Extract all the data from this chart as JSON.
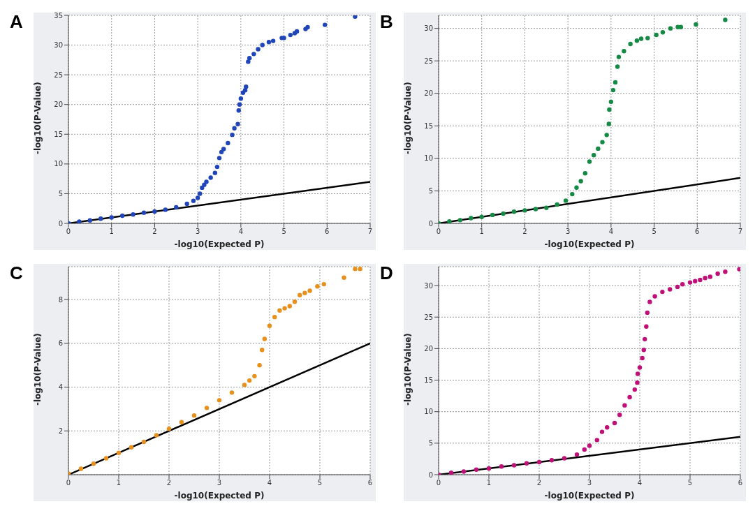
{
  "chart_data": [
    {
      "type": "scatter",
      "title": "A",
      "xlabel": "-log10(Expected P)",
      "ylabel": "-log10(P-Value)",
      "xlim": [
        0,
        7
      ],
      "ylim": [
        0,
        35
      ],
      "xticks": [
        0,
        1,
        2,
        3,
        4,
        5,
        6,
        7
      ],
      "yticks": [
        0,
        5,
        10,
        15,
        20,
        25,
        30,
        35
      ],
      "grid": true,
      "marker": "circle",
      "series": [
        {
          "type": "scatter",
          "color": "#1f45b8",
          "x": [
            0,
            0.25,
            0.5,
            0.75,
            1,
            1.25,
            1.5,
            1.75,
            2,
            2.25,
            2.5,
            2.75,
            2.9,
            3.0,
            3.05,
            3.1,
            3.15,
            3.2,
            3.3,
            3.4,
            3.45,
            3.5,
            3.55,
            3.6,
            3.7,
            3.8,
            3.85,
            3.93,
            3.95,
            3.97,
            4.0,
            4.05,
            4.1,
            4.12,
            4.17,
            4.2,
            4.3,
            4.4,
            4.5,
            4.65,
            4.75,
            4.95,
            5.0,
            5.15,
            5.25,
            5.3,
            5.5,
            5.55,
            5.95,
            6.65
          ],
          "values": [
            0,
            0.3,
            0.5,
            0.8,
            1.0,
            1.3,
            1.5,
            1.8,
            2.0,
            2.3,
            2.7,
            3.3,
            3.8,
            4.3,
            5.0,
            6.0,
            6.5,
            7.0,
            7.7,
            8.5,
            9.5,
            11,
            12,
            12.5,
            13.5,
            14.9,
            16.0,
            16.7,
            19,
            20,
            21,
            22,
            22.4,
            23,
            27.2,
            27.8,
            28.5,
            29.3,
            30,
            30.5,
            30.7,
            31.2,
            31.2,
            31.7,
            32,
            32.3,
            32.7,
            33,
            33.4,
            34.8
          ]
        },
        {
          "type": "line",
          "color": "#000000",
          "marker": "none",
          "x": [
            0,
            7
          ],
          "values": [
            0,
            7
          ]
        }
      ]
    },
    {
      "type": "scatter",
      "title": "B",
      "xlabel": "-log10(Expected P)",
      "ylabel": "-log10(P-Value)",
      "xlim": [
        0,
        7
      ],
      "ylim": [
        0,
        32
      ],
      "xticks": [
        0,
        1,
        2,
        3,
        4,
        5,
        6,
        7
      ],
      "yticks": [
        0,
        5,
        10,
        15,
        20,
        25,
        30
      ],
      "grid": true,
      "marker": "circle",
      "series": [
        {
          "type": "scatter",
          "color": "#158a45",
          "x": [
            0,
            0.25,
            0.5,
            0.75,
            1,
            1.25,
            1.5,
            1.75,
            2,
            2.25,
            2.5,
            2.75,
            2.95,
            3.1,
            3.2,
            3.3,
            3.4,
            3.5,
            3.6,
            3.7,
            3.8,
            3.9,
            3.95,
            3.96,
            4.0,
            4.05,
            4.1,
            4.15,
            4.18,
            4.3,
            4.45,
            4.6,
            4.7,
            4.85,
            5.05,
            5.2,
            5.38,
            5.55,
            5.62,
            5.97,
            6.65
          ],
          "values": [
            0,
            0.3,
            0.5,
            0.8,
            1.0,
            1.3,
            1.5,
            1.8,
            2.0,
            2.2,
            2.4,
            2.9,
            3.5,
            4.5,
            5.5,
            6.5,
            7.7,
            9.5,
            10.5,
            11.5,
            12.5,
            13.6,
            15.3,
            17.5,
            18.7,
            20.5,
            21.7,
            24.1,
            25.6,
            26.5,
            27.6,
            28.1,
            28.4,
            28.5,
            29.0,
            29.4,
            30.0,
            30.2,
            30.2,
            30.6,
            31.3
          ]
        },
        {
          "type": "line",
          "color": "#000000",
          "marker": "none",
          "x": [
            0,
            7
          ],
          "values": [
            0,
            7
          ]
        }
      ]
    },
    {
      "type": "scatter",
      "title": "C",
      "xlabel": "-log10(Expected P)",
      "ylabel": "-log10(P-Value)",
      "xlim": [
        0,
        6
      ],
      "ylim": [
        0,
        9.5
      ],
      "xticks": [
        0,
        1,
        2,
        3,
        4,
        5,
        6
      ],
      "yticks": [
        2,
        4,
        6,
        8
      ],
      "grid": true,
      "marker": "circle",
      "series": [
        {
          "type": "scatter",
          "color": "#e8901c",
          "x": [
            0,
            0.25,
            0.5,
            0.75,
            1,
            1.25,
            1.5,
            1.75,
            2,
            2.25,
            2.5,
            2.75,
            3,
            3.25,
            3.5,
            3.6,
            3.7,
            3.8,
            3.85,
            3.9,
            4.0,
            4.1,
            4.2,
            4.3,
            4.4,
            4.5,
            4.6,
            4.7,
            4.8,
            4.95,
            5.08,
            5.48,
            5.7,
            5.8
          ],
          "values": [
            0.05,
            0.27,
            0.5,
            0.75,
            1.0,
            1.25,
            1.5,
            1.8,
            2.1,
            2.4,
            2.7,
            3.05,
            3.4,
            3.75,
            4.1,
            4.3,
            4.5,
            5.0,
            5.7,
            6.2,
            6.8,
            7.2,
            7.5,
            7.6,
            7.7,
            7.9,
            8.2,
            8.3,
            8.4,
            8.6,
            8.7,
            9.0,
            9.4,
            9.4
          ]
        },
        {
          "type": "line",
          "color": "#000000",
          "marker": "none",
          "x": [
            0,
            6
          ],
          "values": [
            0,
            6
          ]
        }
      ]
    },
    {
      "type": "scatter",
      "title": "D",
      "xlabel": "-log10(Expected P)",
      "ylabel": "-log10(P-Value)",
      "xlim": [
        0,
        6
      ],
      "ylim": [
        0,
        33
      ],
      "xticks": [
        0,
        1,
        2,
        3,
        4,
        5,
        6
      ],
      "yticks": [
        0,
        5,
        10,
        15,
        20,
        25,
        30
      ],
      "grid": true,
      "marker": "circle",
      "series": [
        {
          "type": "scatter",
          "color": "#c01078",
          "x": [
            0,
            0.25,
            0.5,
            0.75,
            1,
            1.25,
            1.5,
            1.75,
            2,
            2.25,
            2.5,
            2.75,
            2.9,
            3,
            3.15,
            3.25,
            3.35,
            3.5,
            3.6,
            3.7,
            3.8,
            3.9,
            3.95,
            3.96,
            4.0,
            4.05,
            4.08,
            4.1,
            4.13,
            4.15,
            4.2,
            4.3,
            4.45,
            4.6,
            4.75,
            4.85,
            5.0,
            5.1,
            5.2,
            5.3,
            5.4,
            5.55,
            5.7,
            5.98
          ],
          "values": [
            0,
            0.3,
            0.5,
            0.8,
            1.0,
            1.3,
            1.5,
            1.8,
            2.0,
            2.3,
            2.6,
            3.2,
            4.0,
            4.6,
            5.5,
            6.8,
            7.5,
            8.2,
            9.5,
            11,
            12.3,
            13.5,
            14.6,
            16,
            17,
            18.5,
            19.8,
            21.5,
            23.5,
            25.7,
            27.4,
            28.3,
            29,
            29.4,
            29.8,
            30.2,
            30.5,
            30.7,
            30.9,
            31.2,
            31.4,
            31.9,
            32.2,
            32.6
          ]
        },
        {
          "type": "line",
          "color": "#000000",
          "marker": "none",
          "x": [
            0,
            6
          ],
          "values": [
            0,
            6
          ]
        }
      ]
    }
  ]
}
